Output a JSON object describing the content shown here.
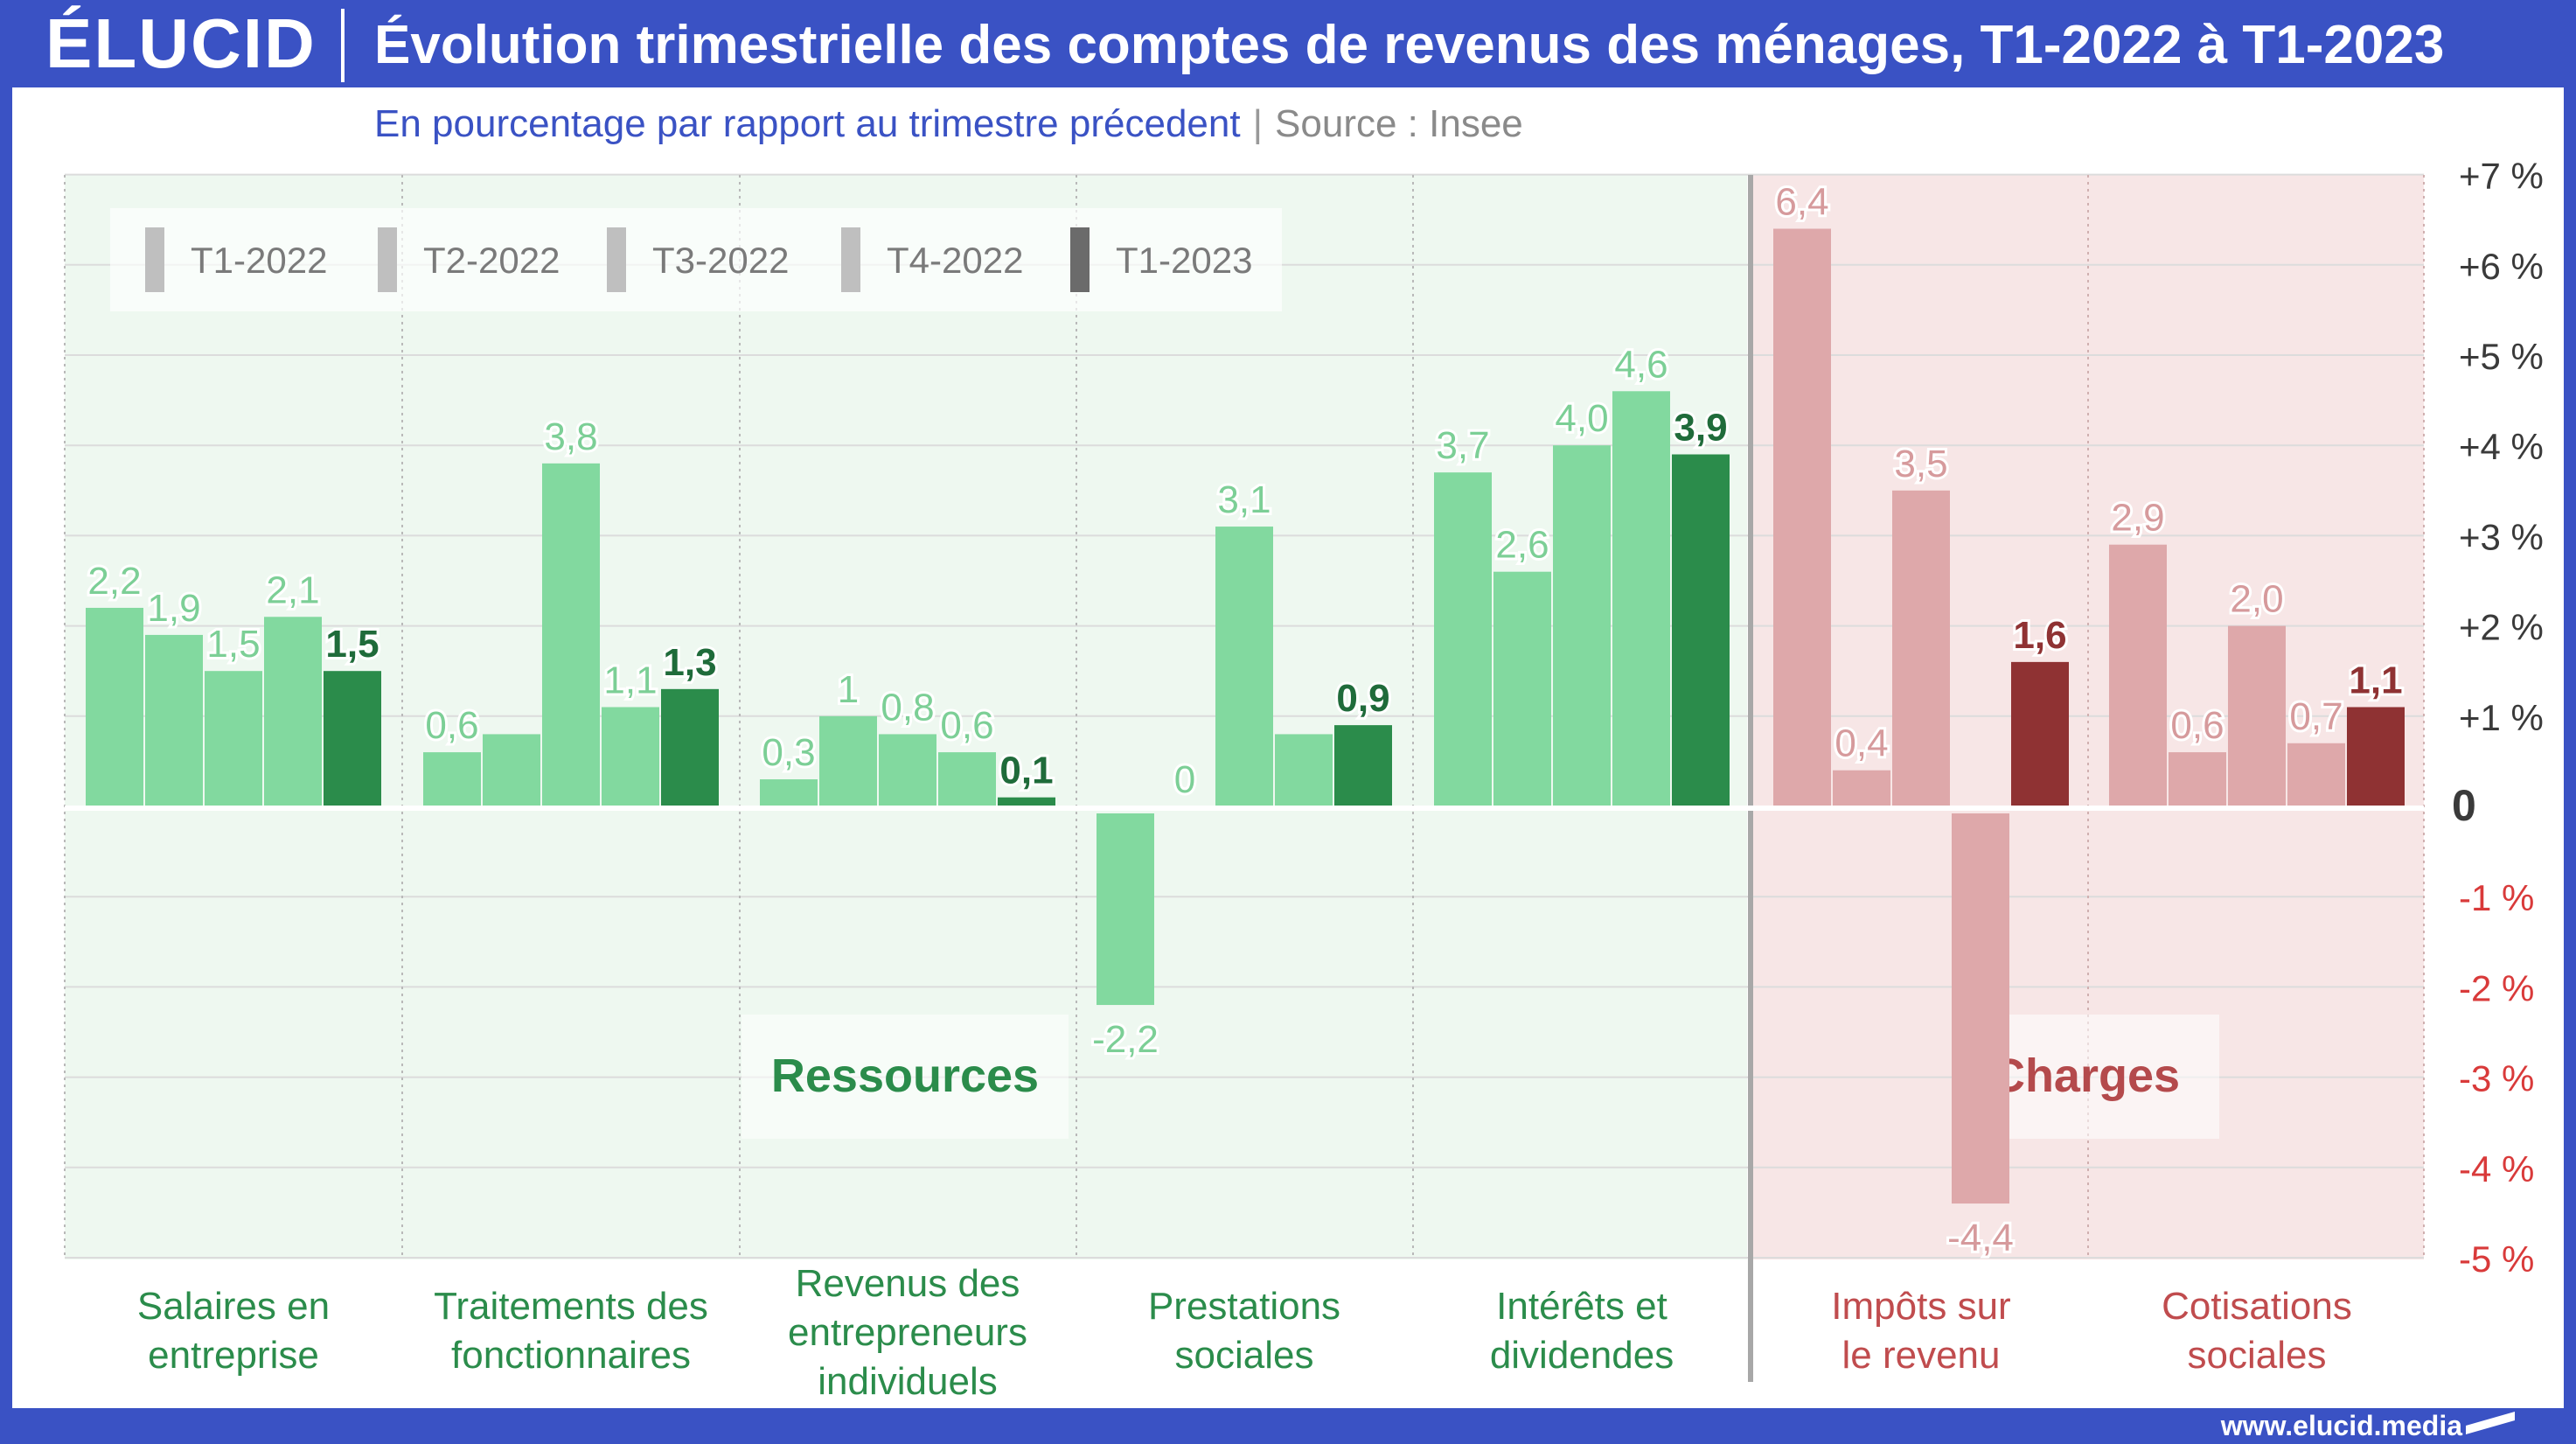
{
  "header": {
    "logo": "ÉLUCID",
    "title": "Évolution trimestrielle des comptes de revenus des ménages, T1-2022 à T1-2023"
  },
  "subtitle": {
    "text": "En pourcentage par rapport au trimestre précedent",
    "separator": "|",
    "source": "Source : Insee"
  },
  "footer": {
    "url": "www.elucid.media"
  },
  "colors": {
    "res_light": "#82d99f",
    "res_dark": "#2b8c4b",
    "res_label": "#7ccf96",
    "res_label_dark": "#1f6b3a",
    "res_bg": "#eef8f0",
    "chg_light": "#dea8aa",
    "chg_dark": "#8f3233",
    "chg_label": "#d69a9c",
    "chg_label_dark": "#8f3233",
    "chg_bg": "#f7e6e6",
    "neg_tick": "#d93a3a",
    "legend_grey": "#bfbfbf",
    "legend_dark": "#6b6b6b"
  },
  "chart_data": {
    "type": "bar",
    "ylim": [
      -5,
      7
    ],
    "y_ticks": [
      {
        "value": 7,
        "label": "+7 %"
      },
      {
        "value": 6,
        "label": "+6 %"
      },
      {
        "value": 5,
        "label": "+5 %"
      },
      {
        "value": 4,
        "label": "+4 %"
      },
      {
        "value": 3,
        "label": "+3 %"
      },
      {
        "value": 2,
        "label": "+2 %"
      },
      {
        "value": 1,
        "label": "+1 %"
      },
      {
        "value": 0,
        "label": "0"
      },
      {
        "value": -1,
        "label": "-1 %"
      },
      {
        "value": -2,
        "label": "-2 %"
      },
      {
        "value": -3,
        "label": "-3 %"
      },
      {
        "value": -4,
        "label": "-4 %"
      },
      {
        "value": -5,
        "label": "-5 %"
      }
    ],
    "legend": [
      "T1-2022",
      "T2-2022",
      "T3-2022",
      "T4-2022",
      "T1-2023"
    ],
    "sections": [
      {
        "name": "Ressources",
        "kind": "res"
      },
      {
        "name": "Charges",
        "kind": "chg"
      }
    ],
    "groups": [
      {
        "kind": "res",
        "category": [
          "Salaires en",
          "entreprise"
        ],
        "values": [
          2.2,
          1.9,
          1.5,
          2.1,
          1.5
        ],
        "labels": [
          "2,2",
          "1,9",
          "1,5",
          "2,1",
          "1,5"
        ]
      },
      {
        "kind": "res",
        "category": [
          "Traitements des",
          "fonctionnaires"
        ],
        "values": [
          0.6,
          0.8,
          3.8,
          1.1,
          1.3
        ],
        "labels": [
          "0,6",
          "",
          "3,8",
          "1,1",
          "1,3"
        ]
      },
      {
        "kind": "res",
        "category": [
          "Revenus des",
          "entrepreneurs",
          "individuels"
        ],
        "values": [
          0.3,
          1.0,
          0.8,
          0.6,
          0.1
        ],
        "labels": [
          "0,3",
          "1",
          "0,8",
          "0,6",
          "0,1"
        ]
      },
      {
        "kind": "res",
        "category": [
          "Prestations",
          "sociales"
        ],
        "values": [
          -2.2,
          0,
          3.1,
          0.8,
          0.9
        ],
        "labels": [
          "-2,2",
          "0",
          "3,1",
          "",
          "0,9"
        ]
      },
      {
        "kind": "res",
        "category": [
          "Intérêts et",
          "dividendes"
        ],
        "values": [
          3.7,
          2.6,
          4.0,
          4.6,
          3.9
        ],
        "labels": [
          "3,7",
          "2,6",
          "4,0",
          "4,6",
          "3,9"
        ]
      },
      {
        "kind": "chg",
        "category": [
          "Impôts sur",
          "le revenu"
        ],
        "values": [
          6.4,
          0.4,
          3.5,
          -4.4,
          1.6
        ],
        "labels": [
          "6,4",
          "0,4",
          "3,5",
          "-4,4",
          "1,6"
        ]
      },
      {
        "kind": "chg",
        "category": [
          "Cotisations",
          "sociales"
        ],
        "values": [
          2.9,
          0.6,
          2.0,
          0.7,
          1.1
        ],
        "labels": [
          "2,9",
          "0,6",
          "2,0",
          "0,7",
          "1,1"
        ]
      }
    ]
  }
}
